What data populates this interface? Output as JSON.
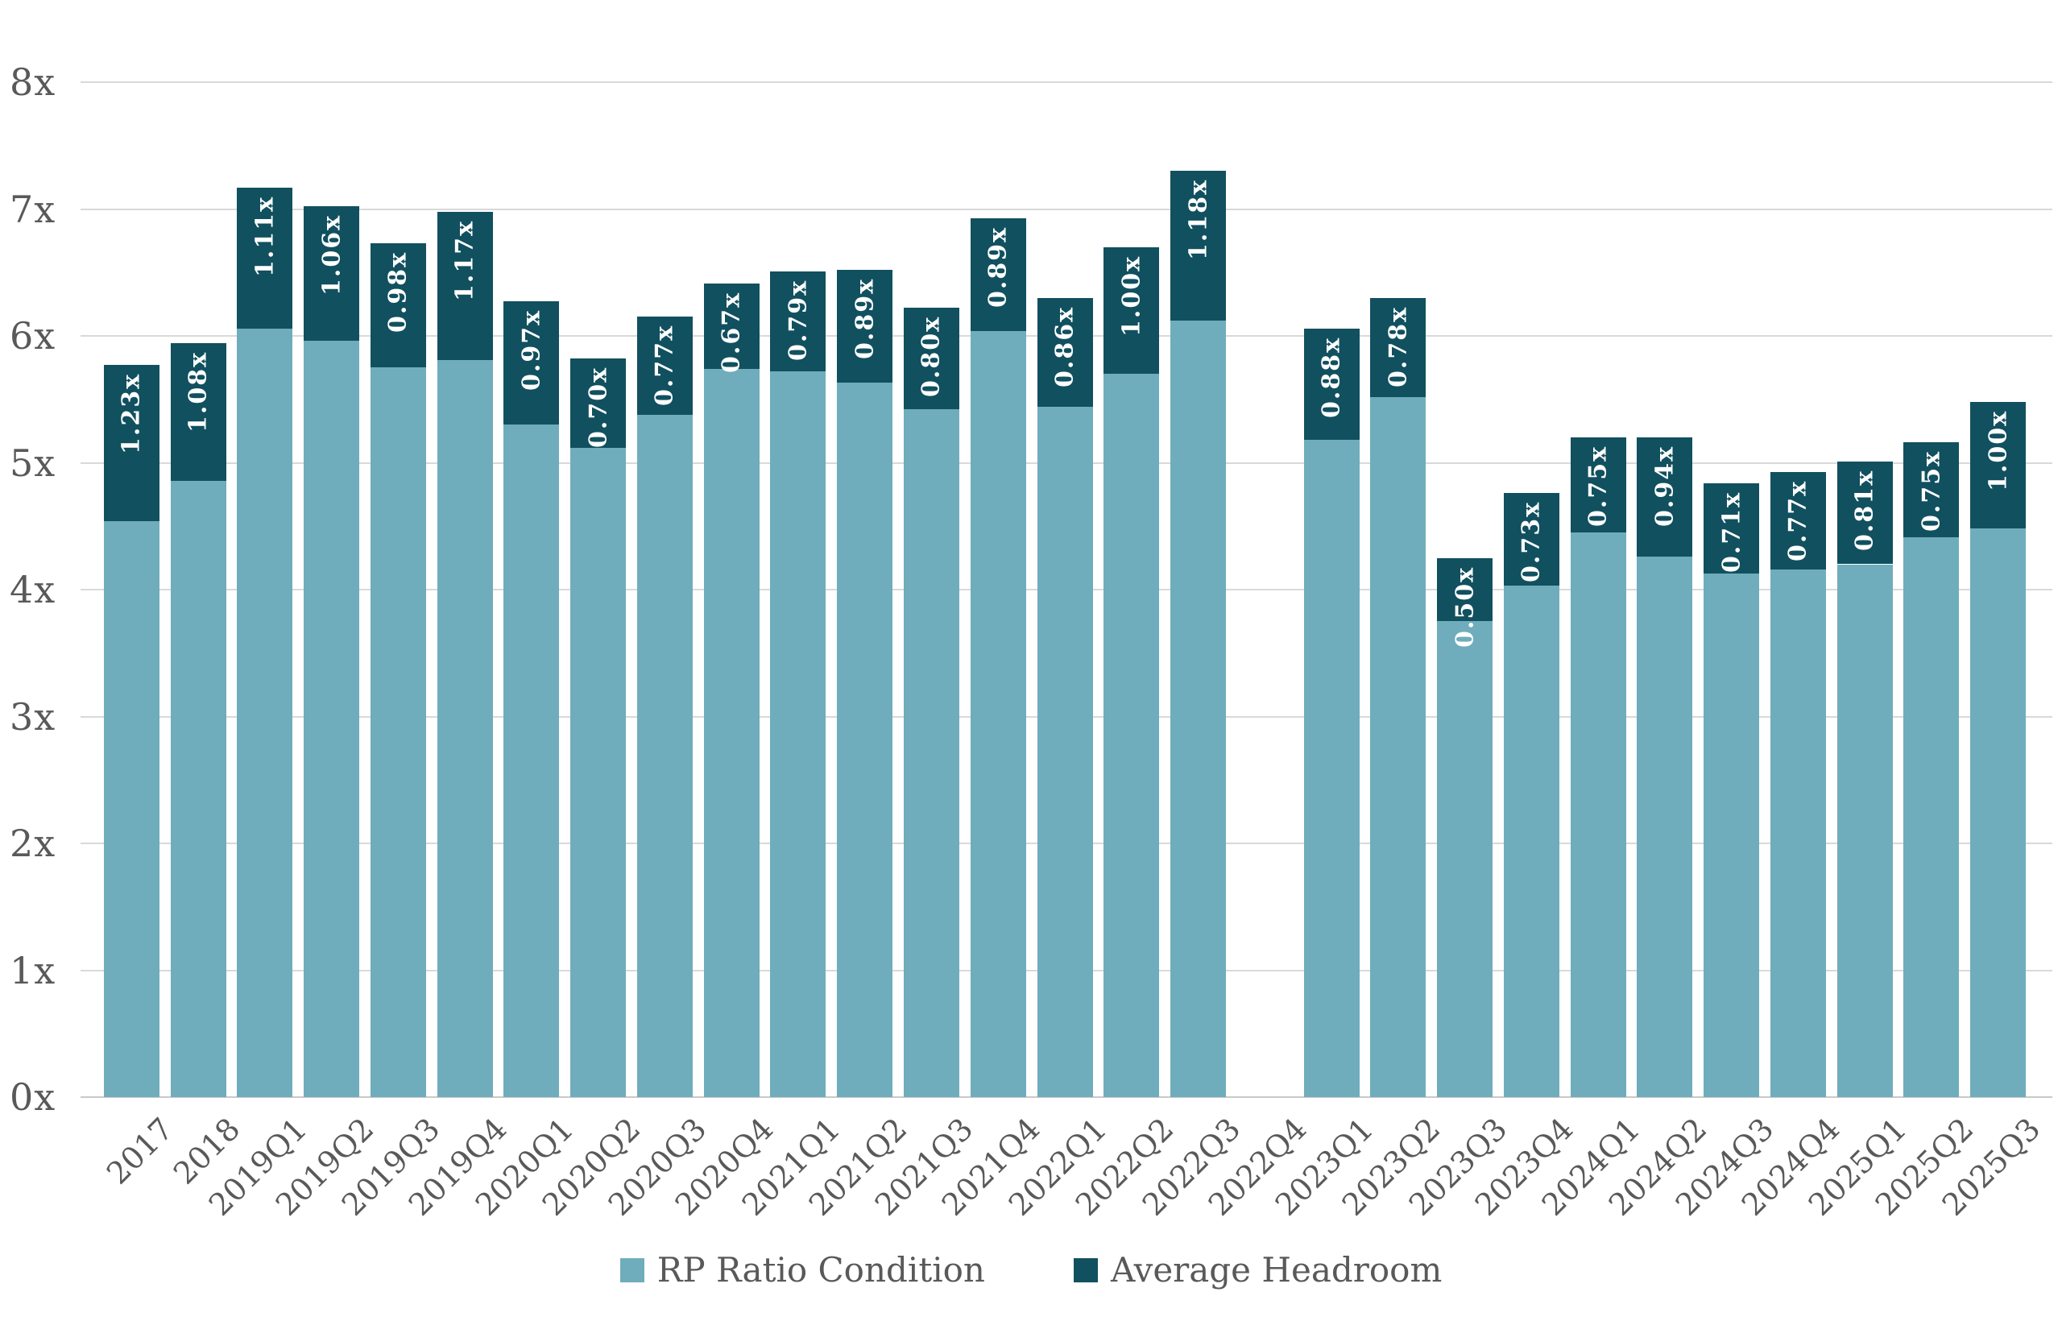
{
  "chart_data": {
    "type": "bar",
    "stacked": true,
    "title": "",
    "xlabel": "",
    "ylabel": "",
    "ylim": [
      0,
      8
    ],
    "grid": "horizontal",
    "legend_position": "bottom",
    "value_suffix": "x",
    "y_ticks": [
      "0x",
      "1x",
      "2x",
      "3x",
      "4x",
      "5x",
      "6x",
      "7x",
      "8x"
    ],
    "categories": [
      "2017",
      "2018",
      "2019Q1",
      "2019Q2",
      "2019Q3",
      "2019Q4",
      "2020Q1",
      "2020Q2",
      "2020Q3",
      "2020Q4",
      "2021Q1",
      "2021Q2",
      "2021Q3",
      "2021Q4",
      "2022Q1",
      "2022Q2",
      "2022Q3",
      "2022Q4",
      "2023Q1",
      "2023Q2",
      "2023Q3",
      "2023Q4",
      "2024Q1",
      "2024Q2",
      "2024Q3",
      "2024Q4",
      "2025Q1",
      "2025Q2",
      "2025Q3"
    ],
    "series": [
      {
        "name": "RP Ratio Condition",
        "color": "#6FADBC",
        "values": [
          4.54,
          4.86,
          6.06,
          5.96,
          5.75,
          5.81,
          5.3,
          5.12,
          5.38,
          5.74,
          5.72,
          5.63,
          5.42,
          6.04,
          5.44,
          5.7,
          6.12,
          null,
          5.18,
          5.52,
          3.75,
          4.03,
          4.45,
          4.26,
          4.13,
          4.16,
          4.2,
          4.41,
          4.48
        ]
      },
      {
        "name": "Average Headroom",
        "color": "#11505F",
        "values": [
          1.23,
          1.08,
          1.11,
          1.06,
          0.98,
          1.17,
          0.97,
          0.7,
          0.77,
          0.67,
          0.79,
          0.89,
          0.8,
          0.89,
          0.86,
          1.0,
          1.18,
          null,
          0.88,
          0.78,
          0.5,
          0.73,
          0.75,
          0.94,
          0.71,
          0.77,
          0.81,
          0.75,
          1.0
        ],
        "labels": [
          "1.23x",
          "1.08x",
          "1.11x",
          "1.06x",
          "0.98x",
          "1.17x",
          "0.97x",
          "0.70x",
          "0.77x",
          "0.67x",
          "0.79x",
          "0.89x",
          "0.80x",
          "0.89x",
          "0.86x",
          "1.00x",
          "1.18x",
          null,
          "0.88x",
          "0.78x",
          "0.50x",
          "0.73x",
          "0.75x",
          "0.94x",
          "0.71x",
          "0.77x",
          "0.81x",
          "0.75x",
          "1.00x"
        ]
      }
    ],
    "colors": {
      "gridline": "#D9D9D9",
      "baseline": "#C9C9C9",
      "axis_text": "#595959",
      "bar_label_text": "#FFFFFF",
      "background": "#FFFFFF"
    }
  }
}
